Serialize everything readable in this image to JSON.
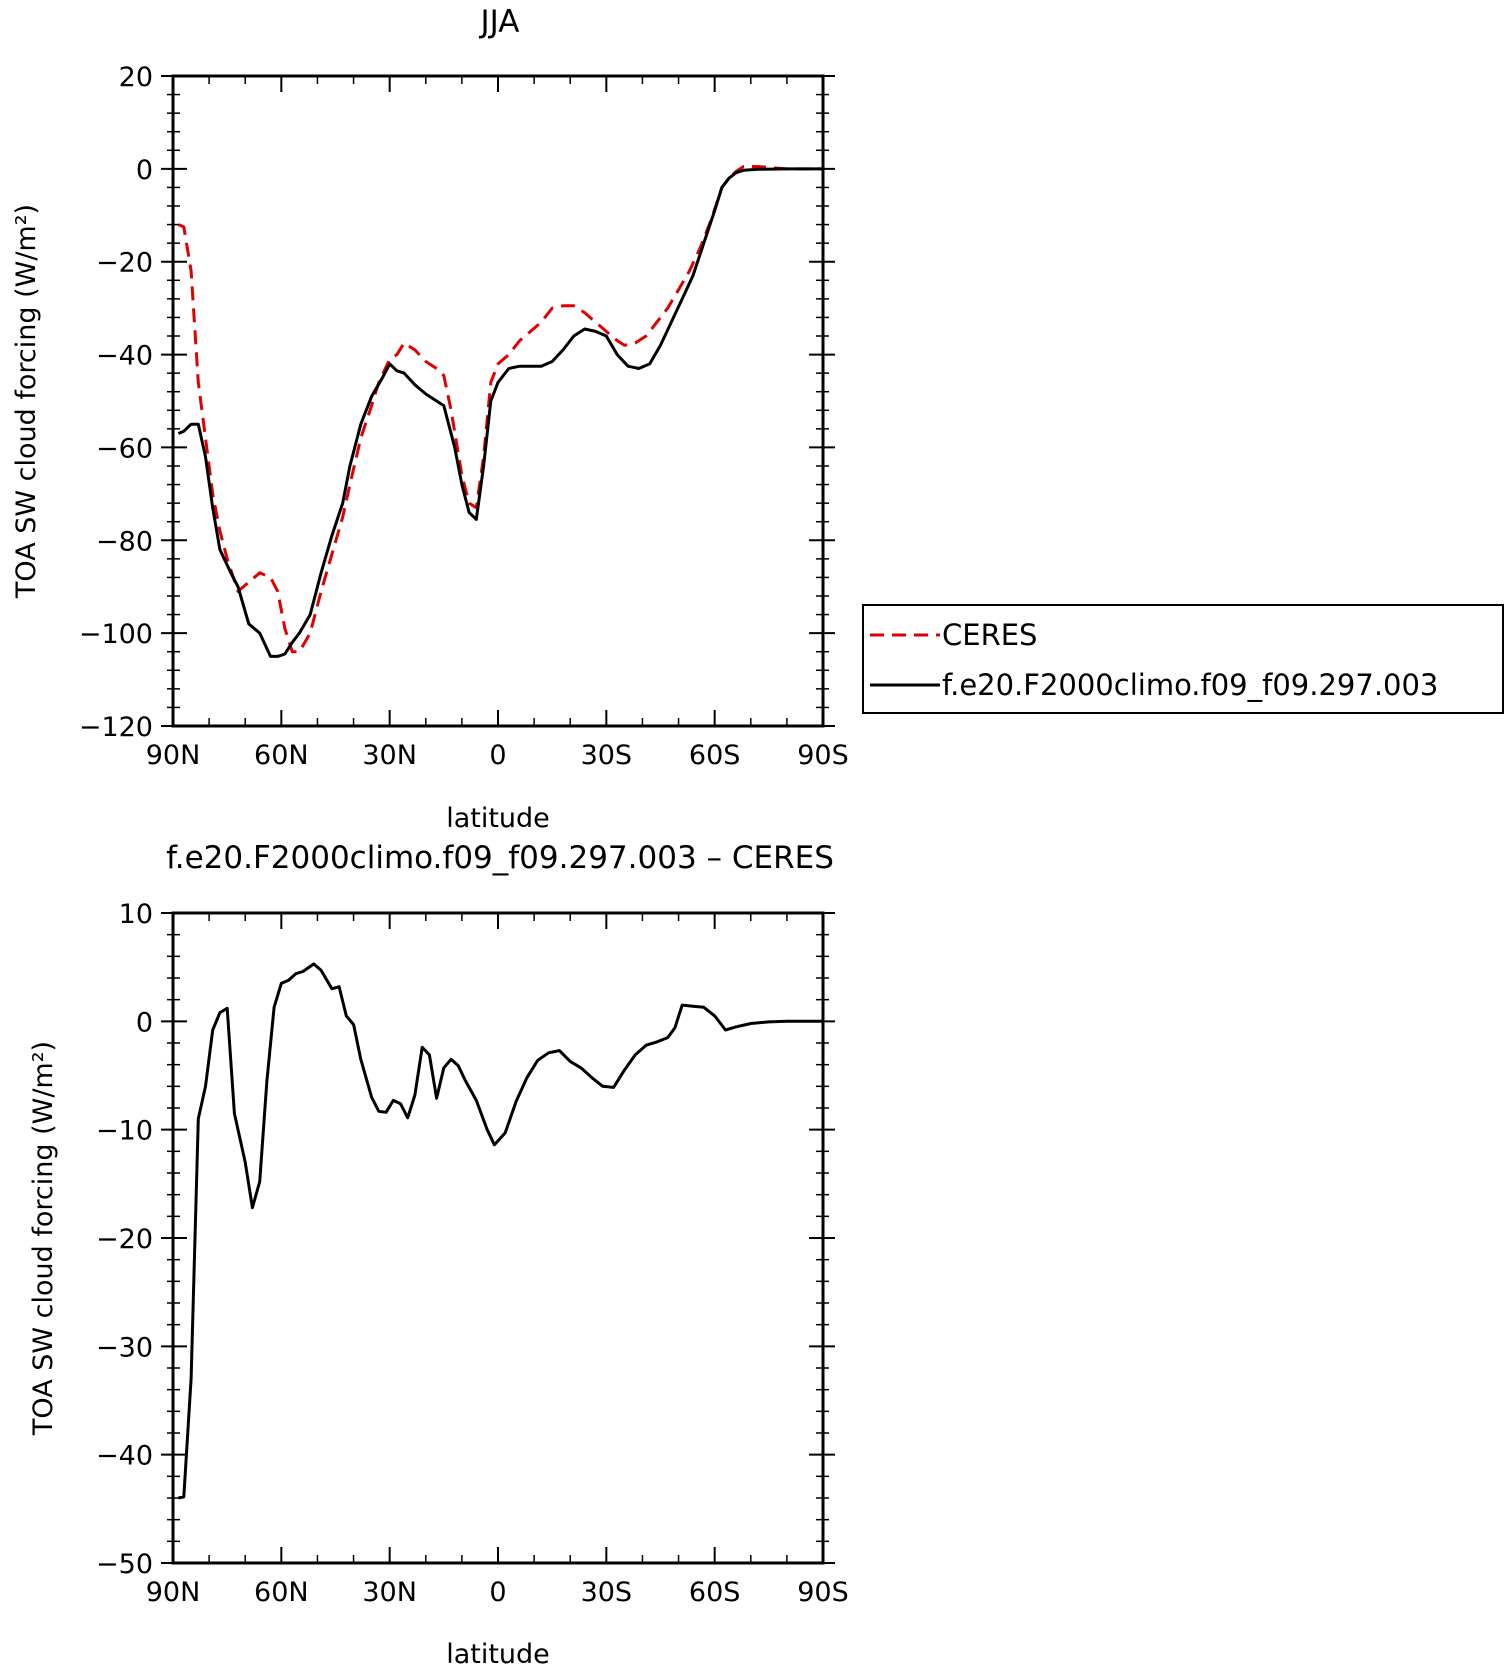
{
  "chart_data": [
    {
      "type": "line",
      "title": "JJA",
      "xlabel": "latitude",
      "ylabel": "TOA SW cloud forcing (W/m²)",
      "xlim": [
        90,
        -90
      ],
      "ylim": [
        -120,
        20
      ],
      "xticks": [
        {
          "value": 90,
          "label": "90N"
        },
        {
          "value": 60,
          "label": "60N"
        },
        {
          "value": 30,
          "label": "30N"
        },
        {
          "value": 0,
          "label": "0"
        },
        {
          "value": -30,
          "label": "30S"
        },
        {
          "value": -60,
          "label": "60S"
        },
        {
          "value": -90,
          "label": "90S"
        }
      ],
      "yticks": [
        20,
        0,
        -20,
        -40,
        -60,
        -80,
        -100,
        -120
      ],
      "grid": false,
      "legend_position": "right",
      "series": [
        {
          "name": "CERES",
          "color": "#e00000",
          "dash": true,
          "points": [
            [
              88.5,
              -12
            ],
            [
              87,
              -12.5
            ],
            [
              85,
              -22
            ],
            [
              83,
              -46
            ],
            [
              81,
              -58
            ],
            [
              79,
              -70
            ],
            [
              77,
              -78
            ],
            [
              75,
              -84
            ],
            [
              72,
              -91
            ],
            [
              69,
              -89
            ],
            [
              66,
              -87
            ],
            [
              63,
              -88
            ],
            [
              61,
              -91
            ],
            [
              59,
              -99
            ],
            [
              57,
              -104
            ],
            [
              55,
              -104
            ],
            [
              52,
              -100
            ],
            [
              49,
              -91
            ],
            [
              46,
              -83
            ],
            [
              43,
              -75
            ],
            [
              41,
              -68
            ],
            [
              38,
              -58
            ],
            [
              35,
              -51
            ],
            [
              33,
              -46
            ],
            [
              30,
              -41
            ],
            [
              28,
              -40
            ],
            [
              26,
              -37.5
            ],
            [
              23,
              -39
            ],
            [
              20,
              -41.5
            ],
            [
              17,
              -43
            ],
            [
              15,
              -44.5
            ],
            [
              13,
              -52
            ],
            [
              10,
              -66
            ],
            [
              8,
              -72
            ],
            [
              6,
              -73
            ],
            [
              4,
              -62
            ],
            [
              2,
              -46
            ],
            [
              0,
              -42
            ],
            [
              -3,
              -40
            ],
            [
              -6,
              -37
            ],
            [
              -9,
              -35
            ],
            [
              -12,
              -33
            ],
            [
              -15,
              -30
            ],
            [
              -18,
              -29.5
            ],
            [
              -21,
              -29.5
            ],
            [
              -24,
              -31
            ],
            [
              -27,
              -33
            ],
            [
              -30,
              -35
            ],
            [
              -33,
              -37
            ],
            [
              -35,
              -38
            ],
            [
              -38,
              -37.5
            ],
            [
              -41,
              -36
            ],
            [
              -44,
              -33
            ],
            [
              -47,
              -30
            ],
            [
              -50,
              -26
            ],
            [
              -53,
              -22
            ],
            [
              -56,
              -17
            ],
            [
              -59,
              -11
            ],
            [
              -62,
              -4
            ],
            [
              -64,
              -2
            ],
            [
              -66,
              -0.5
            ],
            [
              -68,
              0.5
            ],
            [
              -72,
              0.5
            ],
            [
              -80,
              0
            ],
            [
              -90,
              0
            ]
          ]
        },
        {
          "name": "f.e20.F2000climo.f09_f09.297.003",
          "color": "#000000",
          "dash": false,
          "points": [
            [
              88.5,
              -57
            ],
            [
              87,
              -56.5
            ],
            [
              85,
              -55
            ],
            [
              83,
              -55
            ],
            [
              81,
              -62
            ],
            [
              79,
              -73
            ],
            [
              77,
              -82
            ],
            [
              74,
              -87
            ],
            [
              72,
              -90
            ],
            [
              69,
              -98
            ],
            [
              66,
              -100
            ],
            [
              63,
              -105
            ],
            [
              61,
              -105
            ],
            [
              59,
              -104.5
            ],
            [
              57,
              -102
            ],
            [
              55,
              -100
            ],
            [
              52,
              -96
            ],
            [
              49,
              -87
            ],
            [
              46,
              -79
            ],
            [
              43,
              -72
            ],
            [
              41,
              -64
            ],
            [
              38,
              -55
            ],
            [
              35,
              -49
            ],
            [
              32,
              -45
            ],
            [
              30,
              -42
            ],
            [
              28,
              -43.5
            ],
            [
              26,
              -44
            ],
            [
              23,
              -46.5
            ],
            [
              20,
              -48.5
            ],
            [
              17,
              -50
            ],
            [
              15,
              -51
            ],
            [
              12,
              -60
            ],
            [
              10,
              -68
            ],
            [
              8,
              -74
            ],
            [
              6,
              -75.5
            ],
            [
              4,
              -64
            ],
            [
              2,
              -50
            ],
            [
              0,
              -46
            ],
            [
              -3,
              -43
            ],
            [
              -6,
              -42.5
            ],
            [
              -9,
              -42.5
            ],
            [
              -12,
              -42.5
            ],
            [
              -15,
              -41.5
            ],
            [
              -18,
              -39
            ],
            [
              -21,
              -36
            ],
            [
              -24,
              -34.5
            ],
            [
              -27,
              -35
            ],
            [
              -30,
              -36
            ],
            [
              -33,
              -40
            ],
            [
              -36,
              -42.5
            ],
            [
              -39,
              -43
            ],
            [
              -42,
              -42
            ],
            [
              -45,
              -38
            ],
            [
              -48,
              -33
            ],
            [
              -51,
              -28
            ],
            [
              -54,
              -23
            ],
            [
              -57,
              -16
            ],
            [
              -60,
              -9
            ],
            [
              -62,
              -4
            ],
            [
              -64,
              -2
            ],
            [
              -66,
              -0.8
            ],
            [
              -68,
              -0.3
            ],
            [
              -72,
              -0.1
            ],
            [
              -80,
              0
            ],
            [
              -90,
              0
            ]
          ]
        }
      ]
    },
    {
      "type": "line",
      "title": "f.e20.F2000climo.f09_f09.297.003 – CERES",
      "xlabel": "latitude",
      "ylabel": "TOA SW cloud forcing (W/m²)",
      "xlim": [
        90,
        -90
      ],
      "ylim": [
        -50,
        10
      ],
      "xticks": [
        {
          "value": 90,
          "label": "90N"
        },
        {
          "value": 60,
          "label": "60N"
        },
        {
          "value": 30,
          "label": "30N"
        },
        {
          "value": 0,
          "label": "0"
        },
        {
          "value": -30,
          "label": "30S"
        },
        {
          "value": -60,
          "label": "60S"
        },
        {
          "value": -90,
          "label": "90S"
        }
      ],
      "yticks": [
        10,
        0,
        -10,
        -20,
        -30,
        -40,
        -50
      ],
      "grid": false,
      "series": [
        {
          "color": "#000000",
          "dash": false,
          "points": [
            [
              88.5,
              -44
            ],
            [
              87,
              -43.9
            ],
            [
              85,
              -33
            ],
            [
              83,
              -9
            ],
            [
              81,
              -6
            ],
            [
              79,
              -0.8
            ],
            [
              77,
              0.8
            ],
            [
              75,
              1.2
            ],
            [
              73,
              -8.5
            ],
            [
              70,
              -13
            ],
            [
              68,
              -17.2
            ],
            [
              66,
              -14.8
            ],
            [
              64,
              -5.5
            ],
            [
              62,
              1.3
            ],
            [
              60,
              3.5
            ],
            [
              58,
              3.8
            ],
            [
              56,
              4.4
            ],
            [
              54,
              4.6
            ],
            [
              51,
              5.3
            ],
            [
              49,
              4.7
            ],
            [
              46,
              3.0
            ],
            [
              44,
              3.2
            ],
            [
              42,
              0.5
            ],
            [
              40,
              -0.3
            ],
            [
              38,
              -3.5
            ],
            [
              35,
              -7
            ],
            [
              33,
              -8.3
            ],
            [
              31,
              -8.4
            ],
            [
              29,
              -7.3
            ],
            [
              27,
              -7.6
            ],
            [
              25,
              -8.9
            ],
            [
              23,
              -6.8
            ],
            [
              21,
              -2.4
            ],
            [
              19,
              -3.1
            ],
            [
              17,
              -7.1
            ],
            [
              15,
              -4.3
            ],
            [
              13,
              -3.5
            ],
            [
              11,
              -4.1
            ],
            [
              9,
              -5.5
            ],
            [
              6,
              -7.3
            ],
            [
              3,
              -10
            ],
            [
              1,
              -11.4
            ],
            [
              -2,
              -10.3
            ],
            [
              -5,
              -7.4
            ],
            [
              -8,
              -5.2
            ],
            [
              -11,
              -3.6
            ],
            [
              -14,
              -2.9
            ],
            [
              -17,
              -2.7
            ],
            [
              -20,
              -3.7
            ],
            [
              -23,
              -4.3
            ],
            [
              -26,
              -5.2
            ],
            [
              -29,
              -6
            ],
            [
              -32,
              -6.1
            ],
            [
              -35,
              -4.5
            ],
            [
              -38,
              -3.1
            ],
            [
              -41,
              -2.2
            ],
            [
              -44,
              -1.9
            ],
            [
              -47,
              -1.5
            ],
            [
              -49,
              -0.6
            ],
            [
              -51,
              1.5
            ],
            [
              -54,
              1.4
            ],
            [
              -57,
              1.3
            ],
            [
              -60,
              0.5
            ],
            [
              -63,
              -0.8
            ],
            [
              -66,
              -0.5
            ],
            [
              -70,
              -0.2
            ],
            [
              -75,
              -0.05
            ],
            [
              -80,
              0
            ],
            [
              -90,
              0
            ]
          ]
        }
      ]
    }
  ]
}
